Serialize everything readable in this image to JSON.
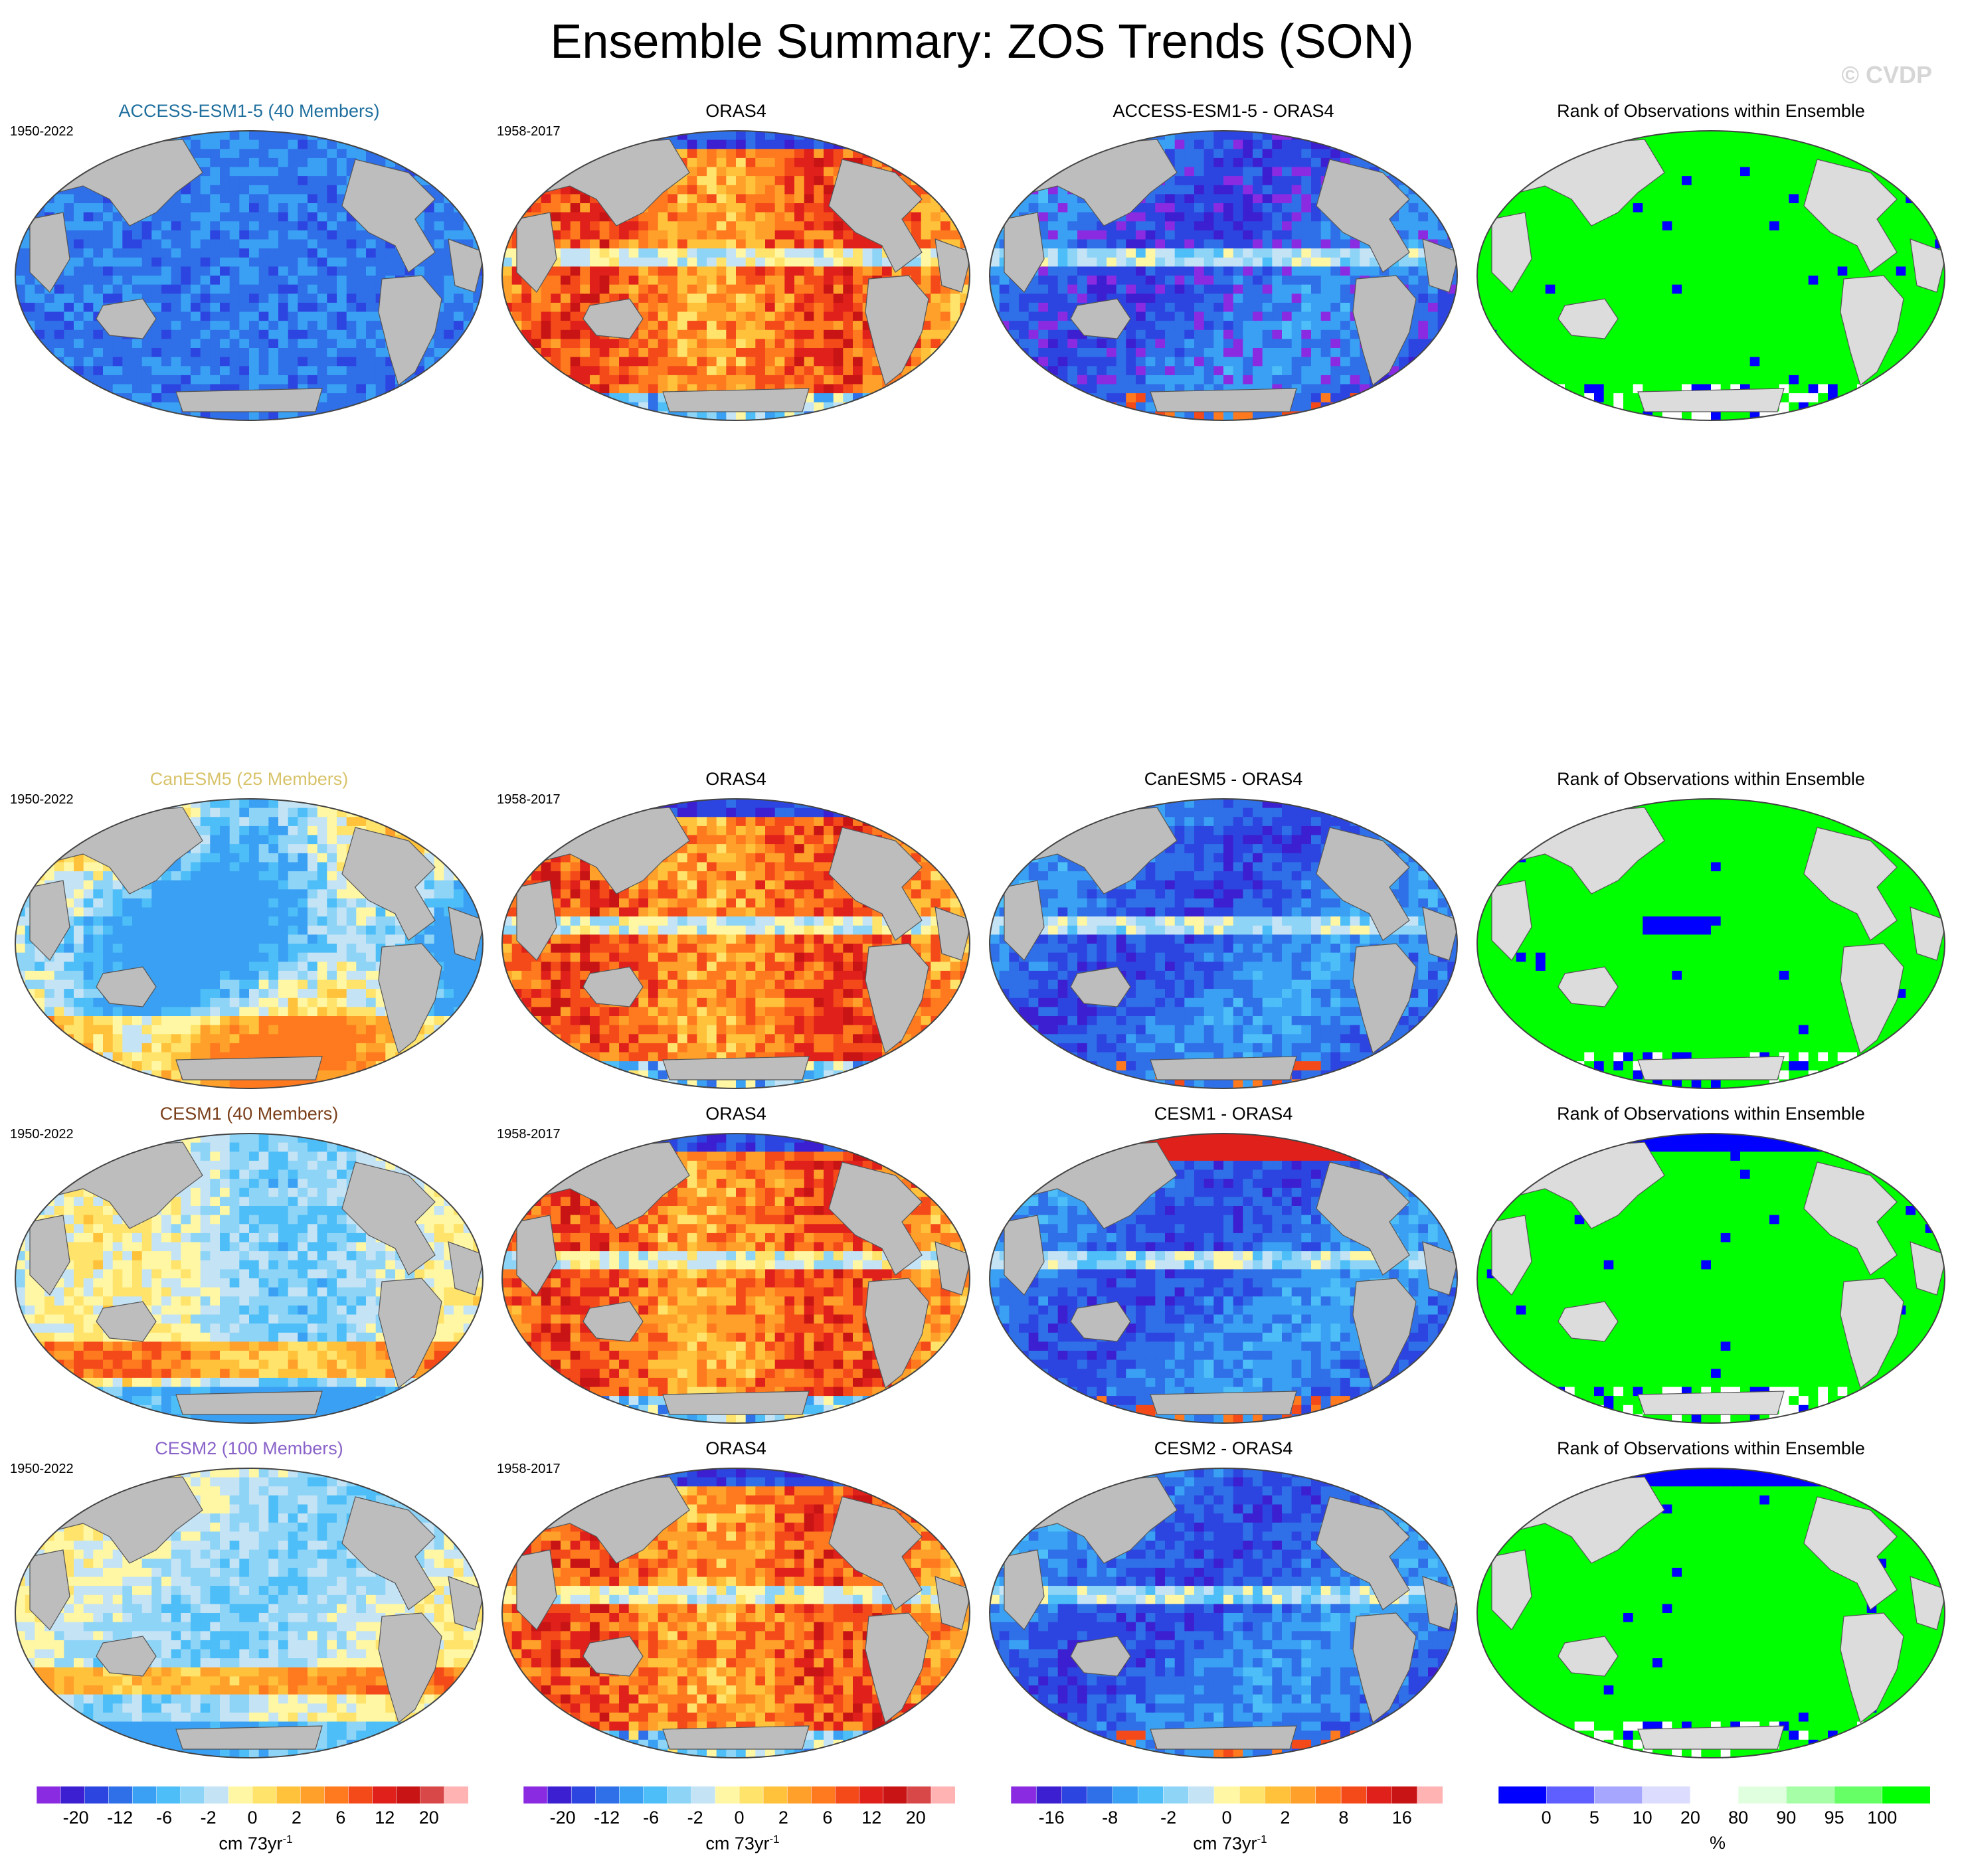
{
  "title": "Ensemble Summary: ZOS Trends (SON)",
  "watermark": "© CVDP",
  "colors": {
    "ocean_gray": "#bdbdbd",
    "land_fill": "#bdbdbd",
    "land_light": "#dcdcdc",
    "rank_green": "#00ff00"
  },
  "rows": [
    {
      "model_title": "ACCESS-ESM1-5 (40 Members)",
      "model_color": "#1f6f9e",
      "model_period": "1950-2022",
      "obs_title": "ORAS4",
      "obs_period": "1958-2017",
      "diff_title": "ACCESS-ESM1-5 - ORAS4",
      "rank_title": "Rank of Observations within Ensemble"
    },
    {
      "model_title": "CanESM5 (25 Members)",
      "model_color": "#d8c36a",
      "model_period": "1950-2022",
      "obs_title": "ORAS4",
      "obs_period": "1958-2017",
      "diff_title": "CanESM5 - ORAS4",
      "rank_title": "Rank of Observations within Ensemble"
    },
    {
      "model_title": "CESM1 (40 Members)",
      "model_color": "#7a3f1a",
      "model_period": "1950-2022",
      "obs_title": "ORAS4",
      "obs_period": "1958-2017",
      "diff_title": "CESM1 - ORAS4",
      "rank_title": "Rank of Observations within Ensemble"
    },
    {
      "model_title": "CESM2 (100 Members)",
      "model_color": "#8a63c9",
      "model_period": "1950-2022",
      "obs_title": "ORAS4",
      "obs_period": "1958-2017",
      "diff_title": "CESM2 - ORAS4",
      "rank_title": "Rank of Observations within Ensemble"
    }
  ],
  "chart_data": [
    {
      "type": "heatmap",
      "name": "trend colorbar",
      "colors": [
        "#8a2be2",
        "#3b1fd1",
        "#2d45e0",
        "#2f6fe8",
        "#3aa0f4",
        "#4dbef7",
        "#8ed4f7",
        "#c4e3f5",
        "#fff7a3",
        "#ffe36a",
        "#ffc23a",
        "#ffa02a",
        "#ff7a1f",
        "#f44a1a",
        "#e0201a",
        "#c81414",
        "#d94848",
        "#ffb3b3"
      ],
      "tick_labels": [
        "-20",
        "-12",
        "-6",
        "-2",
        "0",
        "2",
        "6",
        "12",
        "20"
      ],
      "unit": "cm 73yr",
      "unit_superscript": "-1"
    },
    {
      "type": "heatmap",
      "name": "difference colorbar",
      "colors": [
        "#8a2be2",
        "#3b1fd1",
        "#2d45e0",
        "#2f6fe8",
        "#3aa0f4",
        "#4dbef7",
        "#8ed4f7",
        "#c4e3f5",
        "#fff7a3",
        "#ffe36a",
        "#ffc23a",
        "#ffa02a",
        "#ff7a1f",
        "#f44a1a",
        "#e0201a",
        "#c81414",
        "#ffb3b3"
      ],
      "tick_labels": [
        "-16",
        "-8",
        "-2",
        "0",
        "2",
        "8",
        "16"
      ],
      "unit": "cm 73yr",
      "unit_superscript": "-1"
    },
    {
      "type": "heatmap",
      "name": "rank colorbar",
      "colors": [
        "#0000ff",
        "#5f5fff",
        "#a6a6ff",
        "#dcdcff",
        "#ffffff",
        "#dfffdf",
        "#a6ffa6",
        "#66ff66",
        "#00ff00"
      ],
      "tick_labels": [
        "0",
        "5",
        "10",
        "20",
        "80",
        "90",
        "95",
        "100"
      ],
      "unit": "%"
    }
  ]
}
